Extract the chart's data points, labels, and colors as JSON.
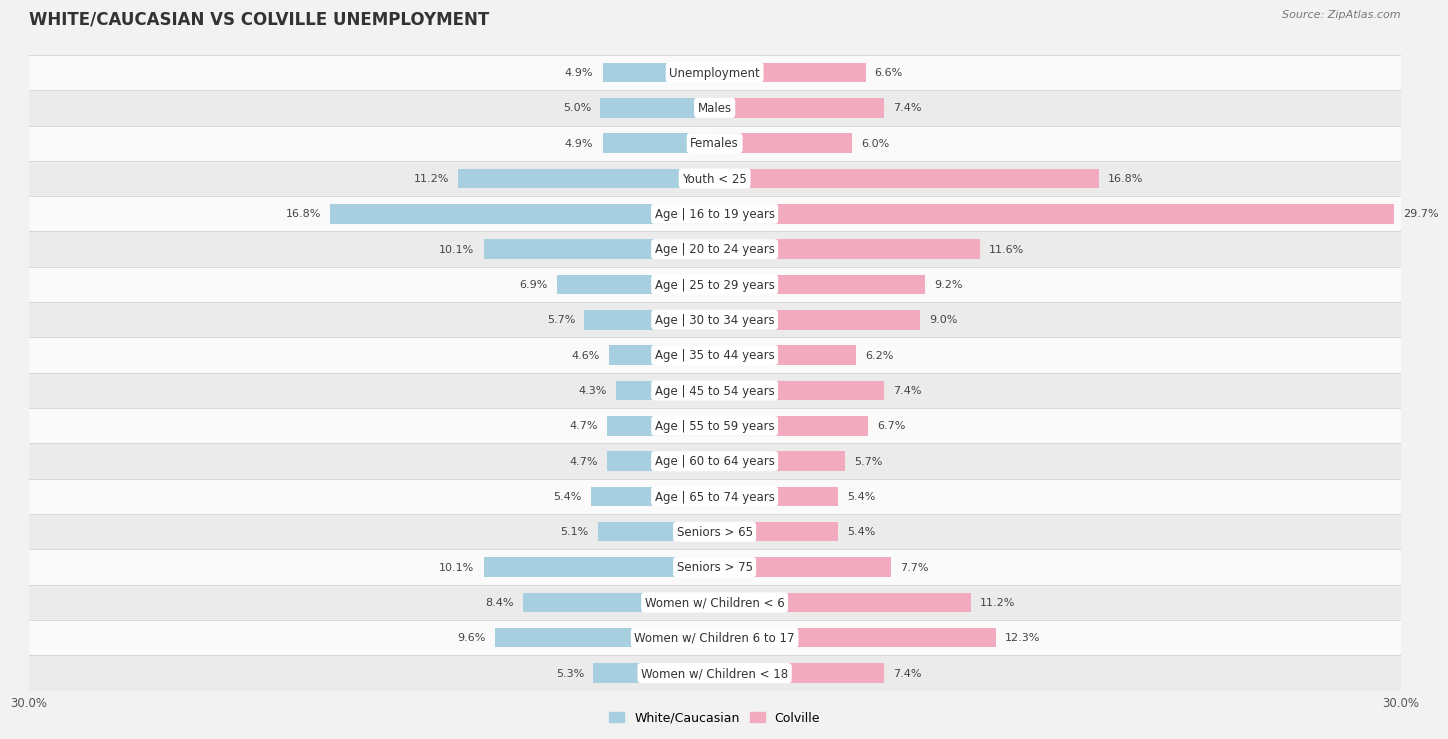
{
  "title": "WHITE/CAUCASIAN VS COLVILLE UNEMPLOYMENT",
  "source": "Source: ZipAtlas.com",
  "categories": [
    "Unemployment",
    "Males",
    "Females",
    "Youth < 25",
    "Age | 16 to 19 years",
    "Age | 20 to 24 years",
    "Age | 25 to 29 years",
    "Age | 30 to 34 years",
    "Age | 35 to 44 years",
    "Age | 45 to 54 years",
    "Age | 55 to 59 years",
    "Age | 60 to 64 years",
    "Age | 65 to 74 years",
    "Seniors > 65",
    "Seniors > 75",
    "Women w/ Children < 6",
    "Women w/ Children 6 to 17",
    "Women w/ Children < 18"
  ],
  "white_values": [
    4.9,
    5.0,
    4.9,
    11.2,
    16.8,
    10.1,
    6.9,
    5.7,
    4.6,
    4.3,
    4.7,
    4.7,
    5.4,
    5.1,
    10.1,
    8.4,
    9.6,
    5.3
  ],
  "colville_values": [
    6.6,
    7.4,
    6.0,
    16.8,
    29.7,
    11.6,
    9.2,
    9.0,
    6.2,
    7.4,
    6.7,
    5.7,
    5.4,
    5.4,
    7.7,
    11.2,
    12.3,
    7.4
  ],
  "white_color": "#a8cfe0",
  "colville_color": "#f2abbe",
  "background_color": "#f2f2f2",
  "row_bg_light": "#fafafa",
  "row_bg_dark": "#ebebeb",
  "separator_color": "#d8d8d8",
  "axis_limit": 30.0,
  "legend_white": "White/Caucasian",
  "legend_colville": "Colville",
  "bar_height": 0.55,
  "title_fontsize": 12,
  "label_fontsize": 8.5,
  "value_fontsize": 8.0,
  "axis_tick_fontsize": 8.5
}
